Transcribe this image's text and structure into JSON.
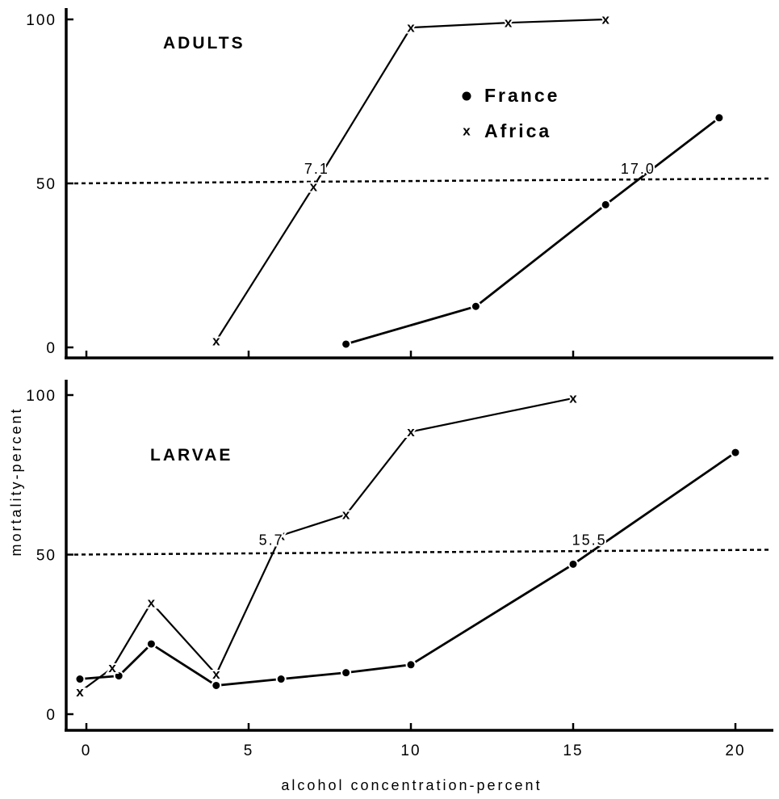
{
  "chart_data": [
    {
      "panel": "top",
      "type": "line",
      "title": "ADULTS",
      "xlim": [
        -1,
        21
      ],
      "ylim": [
        0,
        100
      ],
      "y_ticks": [
        {
          "value": 0,
          "label": "0"
        },
        {
          "value": 50,
          "label": "50"
        },
        {
          "value": 100,
          "label": "100"
        }
      ],
      "x_ticks": [
        0,
        5,
        10,
        15
      ],
      "legend": {
        "placement": "top-right",
        "items": [
          {
            "label": "France",
            "marker": "dot"
          },
          {
            "label": "Africa",
            "marker": "x"
          }
        ]
      },
      "reference_line": {
        "y": 50,
        "style": "dotted"
      },
      "series": [
        {
          "name": "France",
          "marker": "dot",
          "x": [
            8,
            12,
            16,
            19.5
          ],
          "y": [
            1,
            12.5,
            43.5,
            70
          ]
        },
        {
          "name": "Africa",
          "marker": "x",
          "x": [
            4,
            7,
            10,
            13,
            16
          ],
          "y": [
            2,
            49,
            97.5,
            99,
            100
          ]
        }
      ],
      "annotations": [
        {
          "text": "7.1",
          "x": 7.1,
          "y": 50
        },
        {
          "text": "17.0",
          "x": 17.0,
          "y": 50
        }
      ]
    },
    {
      "panel": "bottom",
      "type": "line",
      "title": "LARVAE",
      "xlim": [
        -1,
        21
      ],
      "ylim": [
        0,
        100
      ],
      "y_ticks": [
        {
          "value": 0,
          "label": "0"
        },
        {
          "value": 50,
          "label": "50"
        },
        {
          "value": 100,
          "label": "100"
        }
      ],
      "x_ticks": [
        {
          "value": 0,
          "label": "0"
        },
        {
          "value": 5,
          "label": "5"
        },
        {
          "value": 10,
          "label": "10"
        },
        {
          "value": 15,
          "label": "15"
        },
        {
          "value": 20,
          "label": "20"
        }
      ],
      "xlabel": "alcohol concentration-percent",
      "ylabel": "mortality-percent",
      "reference_line": {
        "y": 50,
        "style": "dotted"
      },
      "series": [
        {
          "name": "France",
          "marker": "dot",
          "x": [
            -0.2,
            1,
            2,
            4,
            6,
            8,
            10,
            15,
            20
          ],
          "y": [
            11,
            12,
            22,
            9,
            11,
            13,
            15.5,
            47,
            82
          ]
        },
        {
          "name": "Africa",
          "marker": "x",
          "x": [
            -0.2,
            0.8,
            2,
            4,
            6,
            8,
            10,
            15
          ],
          "y": [
            7,
            14.5,
            35,
            12.5,
            56,
            62.5,
            88.5,
            99
          ]
        }
      ],
      "annotations": [
        {
          "text": "5.7",
          "x": 5.7,
          "y": 50
        },
        {
          "text": "15.5",
          "x": 15.5,
          "y": 50
        }
      ]
    }
  ]
}
